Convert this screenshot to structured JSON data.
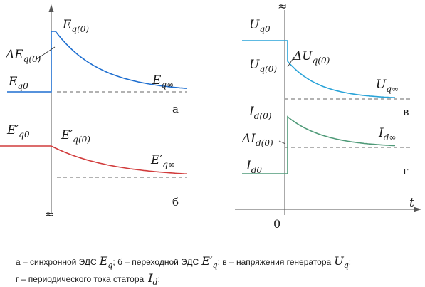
{
  "colors": {
    "eq": "#1f6fd0",
    "eprime": "#d13b3b",
    "uq": "#29a3d8",
    "id": "#4f9a78",
    "axis": "#555555",
    "dash": "#666666"
  },
  "panels": {
    "a": {
      "tag": "а",
      "label_initial_base": "E",
      "label_initial_sub": "q0",
      "label_peak_base": "E",
      "label_peak_sub": "q(0)",
      "label_delta_base": "ΔE",
      "label_delta_sub": "q(0)",
      "label_steady_base": "E",
      "label_steady_sub": "q∞"
    },
    "b": {
      "tag": "б",
      "label_initial_base": "E′",
      "label_initial_sub": "q0",
      "label_peak_base": "E′",
      "label_peak_sub": "q(0)",
      "label_steady_base": "E′",
      "label_steady_sub": "q∞"
    },
    "v": {
      "tag": "в",
      "label_initial_base": "U",
      "label_initial_sub": "q0",
      "label_drop_base": "U",
      "label_drop_sub": "q(0)",
      "label_delta_base": "ΔU",
      "label_delta_sub": "q(0)",
      "label_steady_base": "U",
      "label_steady_sub": "q∞"
    },
    "g": {
      "tag": "г",
      "label_initial_base": "I",
      "label_initial_sub": "d0",
      "label_peak_base": "I",
      "label_peak_sub": "d(0)",
      "label_delta_base": "ΔI",
      "label_delta_sub": "d(0)",
      "label_steady_base": "I",
      "label_steady_sub": "d∞"
    }
  },
  "axis": {
    "time_label": "t",
    "origin_label": "0",
    "break_mark": "≈"
  },
  "caption": {
    "line1_a": "а – синхронной ЭДС",
    "line1_a_sym_base": "E",
    "line1_a_sym_sub": "q",
    "line1_b": "; б – переходной ЭДС",
    "line1_b_sym_base": "E′",
    "line1_b_sym_sub": "q",
    "line1_c": "; в – напряжения генератора",
    "line1_c_sym_base": "U",
    "line1_c_sym_sub": "q",
    "line1_end": ";",
    "line2_a": "г – периодического тока статора",
    "line2_a_sym_base": "I",
    "line2_a_sym_sub": "d",
    "line2_end": ";"
  },
  "chart_data": {
    "type": "line",
    "series": [
      {
        "key": "eq",
        "before": 0.25,
        "jump": 1.0,
        "steady": 0.25,
        "tau": 0.35
      },
      {
        "key": "eprime",
        "before": 0.55,
        "jump": 0.55,
        "steady": 0.0,
        "tau": 0.45
      },
      {
        "key": "uq",
        "before": 1.0,
        "jump": 0.65,
        "steady": 0.0,
        "tau": 0.3
      },
      {
        "key": "id",
        "before": 0.0,
        "jump": 1.0,
        "steady": 0.55,
        "tau": 0.35
      }
    ]
  }
}
